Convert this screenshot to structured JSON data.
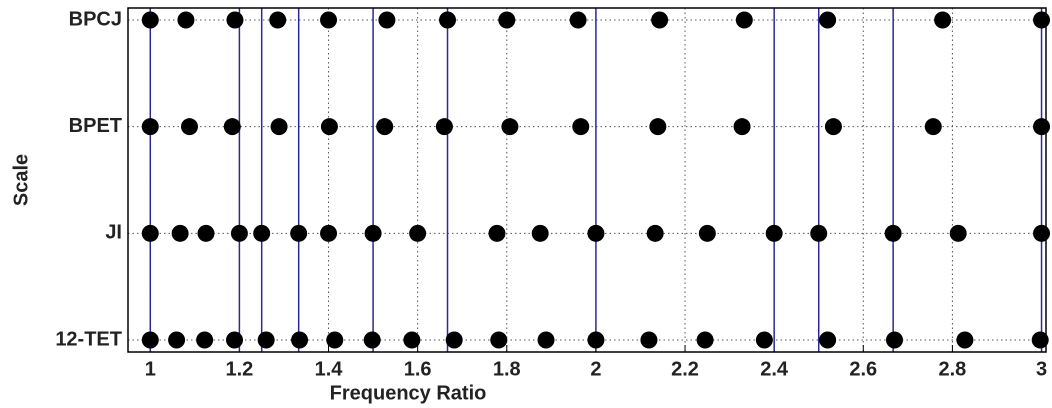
{
  "chart_data": {
    "type": "strip",
    "x_label": "Frequency Ratio",
    "y_label": "Scale",
    "xlim": [
      0.95,
      3.01
    ],
    "xticks": [
      1,
      1.2,
      1.4,
      1.6,
      1.8,
      2,
      2.2,
      2.4,
      2.6,
      2.8,
      3
    ],
    "grid": true,
    "point_color": "#000000",
    "reference_line_color": "#2a2a9a",
    "reference_lines": [
      1,
      1.2,
      1.25,
      1.333,
      1.5,
      1.667,
      2,
      2.4,
      2.5,
      2.667,
      3
    ],
    "series": [
      {
        "name": "12-TET",
        "values": [
          1,
          1.059,
          1.122,
          1.189,
          1.26,
          1.335,
          1.414,
          1.498,
          1.587,
          1.682,
          1.782,
          1.888,
          2,
          2.119,
          2.245,
          2.378,
          2.52,
          2.67,
          2.828,
          2.997
        ]
      },
      {
        "name": "JI",
        "values": [
          1,
          1.067,
          1.125,
          1.2,
          1.25,
          1.333,
          1.4,
          1.5,
          1.6,
          1.778,
          1.875,
          2,
          2.133,
          2.25,
          2.4,
          2.5,
          2.667,
          2.813,
          3
        ]
      },
      {
        "name": "BPET",
        "values": [
          1,
          1.088,
          1.184,
          1.289,
          1.402,
          1.526,
          1.66,
          1.807,
          1.966,
          2.139,
          2.328,
          2.533,
          2.757,
          3
        ]
      },
      {
        "name": "BPCJ",
        "values": [
          1,
          1.08,
          1.19,
          1.286,
          1.4,
          1.531,
          1.667,
          1.8,
          1.96,
          2.143,
          2.333,
          2.52,
          2.778,
          3
        ]
      }
    ]
  }
}
